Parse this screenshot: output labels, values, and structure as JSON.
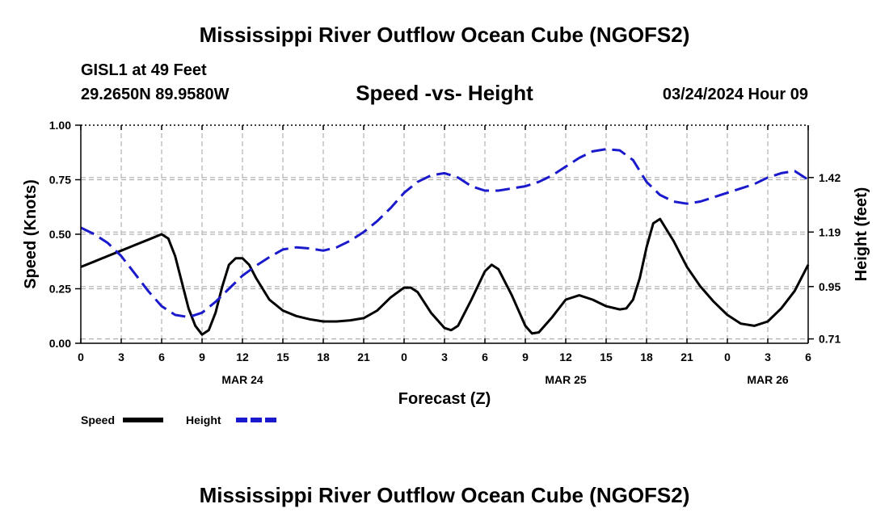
{
  "title": "Mississippi River Outflow Ocean Cube (NGOFS2)",
  "station_label": "GISL1 at 49 Feet",
  "coordinates": "29.2650N  89.9580W",
  "subtitle": "Speed -vs- Height",
  "datetime": "03/24/2024 Hour 09",
  "footer_title": "Mississippi River Outflow Ocean Cube (NGOFS2)",
  "colors": {
    "speed": "#000000",
    "height": "#1a1acc",
    "grid": "#b0b0b0"
  },
  "chart_data": {
    "type": "line",
    "xlabel": "Forecast (Z)",
    "ylabel_left": "Speed (Knots)",
    "ylabel_right": "Height (feet)",
    "x_range": [
      0,
      54
    ],
    "x_ticks": [
      0,
      3,
      6,
      9,
      12,
      15,
      18,
      21,
      24,
      27,
      30,
      33,
      36,
      39,
      42,
      45,
      48,
      51,
      54
    ],
    "x_tick_labels": [
      "0",
      "3",
      "6",
      "9",
      "12",
      "15",
      "18",
      "21",
      "0",
      "3",
      "6",
      "9",
      "12",
      "15",
      "18",
      "21",
      "0",
      "3",
      "6"
    ],
    "date_labels": [
      {
        "x": 12,
        "label": "MAR 24"
      },
      {
        "x": 36,
        "label": "MAR 25"
      },
      {
        "x": 51,
        "label": "MAR 26"
      }
    ],
    "ylim_left": [
      0,
      1.0
    ],
    "y_ticks_left": [
      0,
      0.25,
      0.5,
      0.75,
      1.0
    ],
    "y_tick_labels_left": [
      "0.00",
      "0.25",
      "0.50",
      "0.75",
      "1.00"
    ],
    "y_ticks_right_pos": [
      0.76,
      0.51,
      0.26,
      0.02
    ],
    "y_tick_labels_right": [
      "1.42",
      "1.19",
      "0.95",
      "0.71"
    ],
    "grid": true,
    "series": [
      {
        "name": "Speed",
        "style": "solid",
        "x": [
          0,
          1,
          2,
          3,
          4,
          5,
          6,
          6.5,
          7,
          7.5,
          8,
          8.5,
          9,
          9.5,
          10,
          10.5,
          11,
          11.5,
          12,
          12.5,
          13,
          13.5,
          14,
          15,
          16,
          17,
          18,
          19,
          20,
          21,
          22,
          23,
          24,
          24.5,
          25,
          26,
          27,
          27.5,
          28,
          29,
          30,
          30.5,
          31,
          32,
          33,
          33.5,
          34,
          35,
          36,
          37,
          38,
          39,
          40,
          40.5,
          41,
          41.5,
          42,
          42.5,
          43,
          44,
          45,
          46,
          47,
          48,
          49,
          50,
          51,
          52,
          53,
          54
        ],
        "values": [
          0.35,
          0.375,
          0.4,
          0.425,
          0.45,
          0.475,
          0.5,
          0.48,
          0.4,
          0.28,
          0.16,
          0.08,
          0.04,
          0.06,
          0.14,
          0.26,
          0.36,
          0.39,
          0.39,
          0.36,
          0.3,
          0.25,
          0.2,
          0.15,
          0.125,
          0.11,
          0.1,
          0.1,
          0.105,
          0.115,
          0.15,
          0.21,
          0.255,
          0.255,
          0.235,
          0.14,
          0.07,
          0.06,
          0.08,
          0.2,
          0.33,
          0.36,
          0.34,
          0.22,
          0.08,
          0.045,
          0.05,
          0.12,
          0.2,
          0.22,
          0.2,
          0.17,
          0.155,
          0.16,
          0.2,
          0.3,
          0.44,
          0.55,
          0.57,
          0.47,
          0.35,
          0.26,
          0.19,
          0.13,
          0.09,
          0.08,
          0.1,
          0.16,
          0.24,
          0.36
        ]
      },
      {
        "name": "Height",
        "style": "dashed",
        "x": [
          0,
          1,
          2,
          3,
          4,
          5,
          6,
          7,
          8,
          9,
          10,
          11,
          12,
          13,
          14,
          15,
          16,
          17,
          18,
          19,
          20,
          21,
          22,
          23,
          24,
          25,
          26,
          27,
          28,
          29,
          30,
          31,
          32,
          33,
          34,
          35,
          36,
          37,
          38,
          39,
          40,
          41,
          42,
          43,
          44,
          45,
          46,
          47,
          48,
          49,
          50,
          51,
          52,
          53,
          54
        ],
        "values": [
          0.53,
          0.5,
          0.46,
          0.4,
          0.32,
          0.24,
          0.17,
          0.13,
          0.12,
          0.14,
          0.19,
          0.25,
          0.31,
          0.355,
          0.395,
          0.43,
          0.44,
          0.435,
          0.425,
          0.44,
          0.47,
          0.51,
          0.56,
          0.62,
          0.69,
          0.74,
          0.77,
          0.78,
          0.76,
          0.72,
          0.7,
          0.7,
          0.71,
          0.72,
          0.74,
          0.77,
          0.81,
          0.85,
          0.88,
          0.89,
          0.885,
          0.84,
          0.74,
          0.68,
          0.65,
          0.64,
          0.65,
          0.67,
          0.69,
          0.71,
          0.73,
          0.76,
          0.78,
          0.79,
          0.75
        ]
      }
    ],
    "legend": [
      {
        "label": "Speed",
        "style": "solid"
      },
      {
        "label": "Height",
        "style": "dashed"
      }
    ],
    "legend_position": "bottom-left"
  }
}
